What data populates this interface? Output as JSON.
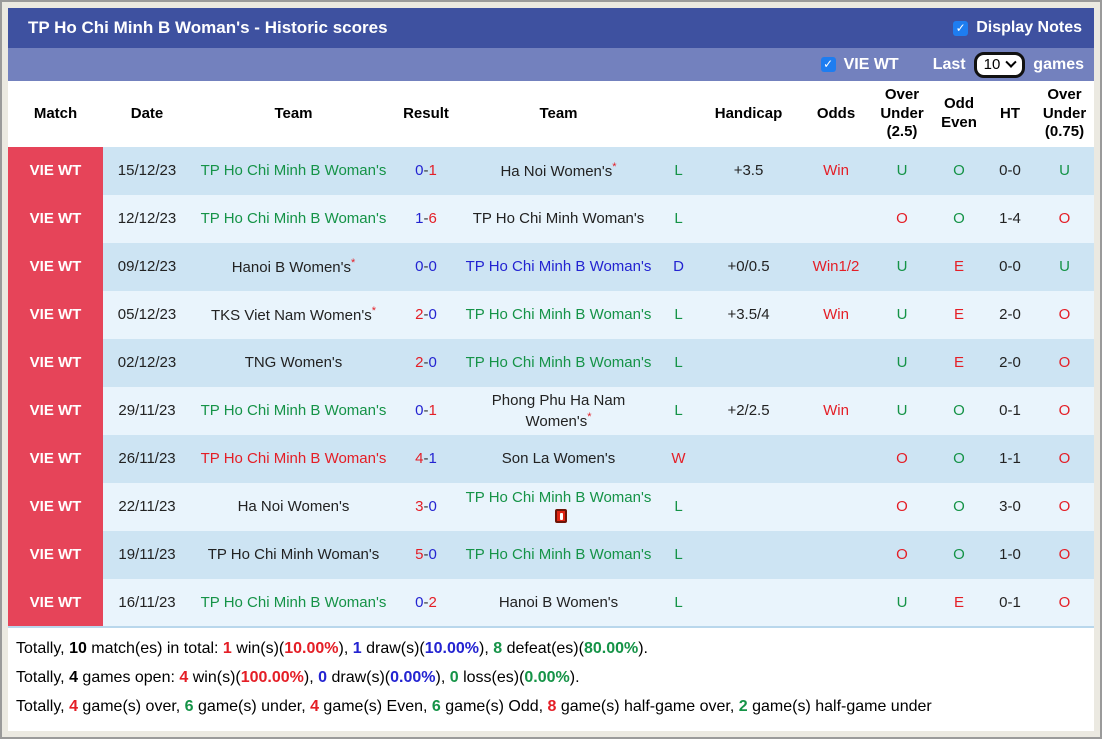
{
  "header": {
    "title": "TP Ho Chi Minh B Woman's - Historic scores",
    "display_notes_label": "Display Notes",
    "display_notes_checked": true
  },
  "filter_bar": {
    "league_label": "VIE WT",
    "league_checked": true,
    "last_label": "Last",
    "games_label": "games",
    "selected_games": "10"
  },
  "icons": {
    "check": "✓",
    "star": "*"
  },
  "colors": {
    "green": "#159347",
    "blue": "#2323d1",
    "red": "#e41e26",
    "black": "#222222",
    "header_bar": "#3e51a0",
    "filter_bar": "#7381be",
    "match_cell": "#e64459",
    "row_dark": "#cde4f3",
    "row_light": "#e9f4fc",
    "checkbox": "#1e7df0",
    "page_bg": "#ebe9e1"
  },
  "table": {
    "result_separator": "-",
    "columns": [
      "Match",
      "Date",
      "Team",
      "Result",
      "Team",
      "",
      "Handicap",
      "Odds",
      "Over Under (2.5)",
      "Odd Even",
      "HT",
      "Over Under (0.75)"
    ],
    "rows": [
      {
        "match": "VIE WT",
        "date": "15/12/23",
        "t1": {
          "n": "TP Ho Chi Minh B Woman's",
          "c": "green"
        },
        "res": {
          "h": "0",
          "hc": "blue",
          "a": "1",
          "ac": "red"
        },
        "t2": {
          "n": "Ha Noi Women's",
          "c": "black",
          "star": true
        },
        "out": {
          "t": "L",
          "c": "green"
        },
        "hcp": "+3.5",
        "odds": {
          "t": "Win",
          "c": "red"
        },
        "ou25": {
          "t": "U",
          "c": "green"
        },
        "oe": {
          "t": "O",
          "c": "green"
        },
        "ht": "0-0",
        "ou075": {
          "t": "U",
          "c": "green"
        }
      },
      {
        "match": "VIE WT",
        "date": "12/12/23",
        "t1": {
          "n": "TP Ho Chi Minh B Woman's",
          "c": "green"
        },
        "res": {
          "h": "1",
          "hc": "blue",
          "a": "6",
          "ac": "red"
        },
        "t2": {
          "n": "TP Ho Chi Minh Woman's",
          "c": "black"
        },
        "out": {
          "t": "L",
          "c": "green"
        },
        "hcp": "",
        "odds": {
          "t": "",
          "c": "red"
        },
        "ou25": {
          "t": "O",
          "c": "red"
        },
        "oe": {
          "t": "O",
          "c": "green"
        },
        "ht": "1-4",
        "ou075": {
          "t": "O",
          "c": "red"
        }
      },
      {
        "match": "VIE WT",
        "date": "09/12/23",
        "t1": {
          "n": "Hanoi B Women's",
          "c": "black",
          "star": true
        },
        "res": {
          "h": "0",
          "hc": "blue",
          "a": "0",
          "ac": "blue"
        },
        "t2": {
          "n": "TP Ho Chi Minh B Woman's",
          "c": "blue"
        },
        "out": {
          "t": "D",
          "c": "blue"
        },
        "hcp": "+0/0.5",
        "odds": {
          "t": "Win1/2",
          "c": "red"
        },
        "ou25": {
          "t": "U",
          "c": "green"
        },
        "oe": {
          "t": "E",
          "c": "red"
        },
        "ht": "0-0",
        "ou075": {
          "t": "U",
          "c": "green"
        }
      },
      {
        "match": "VIE WT",
        "date": "05/12/23",
        "t1": {
          "n": "TKS Viet Nam Women's",
          "c": "black",
          "star": true
        },
        "res": {
          "h": "2",
          "hc": "red",
          "a": "0",
          "ac": "blue"
        },
        "t2": {
          "n": "TP Ho Chi Minh B Woman's",
          "c": "green"
        },
        "out": {
          "t": "L",
          "c": "green"
        },
        "hcp": "+3.5/4",
        "odds": {
          "t": "Win",
          "c": "red"
        },
        "ou25": {
          "t": "U",
          "c": "green"
        },
        "oe": {
          "t": "E",
          "c": "red"
        },
        "ht": "2-0",
        "ou075": {
          "t": "O",
          "c": "red"
        }
      },
      {
        "match": "VIE WT",
        "date": "02/12/23",
        "t1": {
          "n": "TNG Women's",
          "c": "black"
        },
        "res": {
          "h": "2",
          "hc": "red",
          "a": "0",
          "ac": "blue"
        },
        "t2": {
          "n": "TP Ho Chi Minh B Woman's",
          "c": "green"
        },
        "out": {
          "t": "L",
          "c": "green"
        },
        "hcp": "",
        "odds": {
          "t": "",
          "c": "red"
        },
        "ou25": {
          "t": "U",
          "c": "green"
        },
        "oe": {
          "t": "E",
          "c": "red"
        },
        "ht": "2-0",
        "ou075": {
          "t": "O",
          "c": "red"
        }
      },
      {
        "match": "VIE WT",
        "date": "29/11/23",
        "t1": {
          "n": "TP Ho Chi Minh B Woman's",
          "c": "green"
        },
        "res": {
          "h": "0",
          "hc": "blue",
          "a": "1",
          "ac": "red"
        },
        "t2": {
          "n": "Phong Phu Ha Nam Women's",
          "c": "black",
          "star": true
        },
        "out": {
          "t": "L",
          "c": "green"
        },
        "hcp": "+2/2.5",
        "odds": {
          "t": "Win",
          "c": "red"
        },
        "ou25": {
          "t": "U",
          "c": "green"
        },
        "oe": {
          "t": "O",
          "c": "green"
        },
        "ht": "0-1",
        "ou075": {
          "t": "O",
          "c": "red"
        }
      },
      {
        "match": "VIE WT",
        "date": "26/11/23",
        "t1": {
          "n": "TP Ho Chi Minh B Woman's",
          "c": "red"
        },
        "res": {
          "h": "4",
          "hc": "red",
          "a": "1",
          "ac": "blue"
        },
        "t2": {
          "n": "Son La Women's",
          "c": "black"
        },
        "out": {
          "t": "W",
          "c": "red"
        },
        "hcp": "",
        "odds": {
          "t": "",
          "c": "red"
        },
        "ou25": {
          "t": "O",
          "c": "red"
        },
        "oe": {
          "t": "O",
          "c": "green"
        },
        "ht": "1-1",
        "ou075": {
          "t": "O",
          "c": "red"
        }
      },
      {
        "match": "VIE WT",
        "date": "22/11/23",
        "t1": {
          "n": "Ha Noi Women's",
          "c": "black"
        },
        "res": {
          "h": "3",
          "hc": "red",
          "a": "0",
          "ac": "blue"
        },
        "t2": {
          "n": "TP Ho Chi Minh B Woman's",
          "c": "green",
          "icon": "red-card"
        },
        "out": {
          "t": "L",
          "c": "green"
        },
        "hcp": "",
        "odds": {
          "t": "",
          "c": "red"
        },
        "ou25": {
          "t": "O",
          "c": "red"
        },
        "oe": {
          "t": "O",
          "c": "green"
        },
        "ht": "3-0",
        "ou075": {
          "t": "O",
          "c": "red"
        }
      },
      {
        "match": "VIE WT",
        "date": "19/11/23",
        "t1": {
          "n": "TP Ho Chi Minh Woman's",
          "c": "black"
        },
        "res": {
          "h": "5",
          "hc": "red",
          "a": "0",
          "ac": "blue"
        },
        "t2": {
          "n": "TP Ho Chi Minh B Woman's",
          "c": "green"
        },
        "out": {
          "t": "L",
          "c": "green"
        },
        "hcp": "",
        "odds": {
          "t": "",
          "c": "red"
        },
        "ou25": {
          "t": "O",
          "c": "red"
        },
        "oe": {
          "t": "O",
          "c": "green"
        },
        "ht": "1-0",
        "ou075": {
          "t": "O",
          "c": "red"
        }
      },
      {
        "match": "VIE WT",
        "date": "16/11/23",
        "t1": {
          "n": "TP Ho Chi Minh B Woman's",
          "c": "green"
        },
        "res": {
          "h": "0",
          "hc": "blue",
          "a": "2",
          "ac": "red"
        },
        "t2": {
          "n": "Hanoi B Women's",
          "c": "black"
        },
        "out": {
          "t": "L",
          "c": "green"
        },
        "hcp": "",
        "odds": {
          "t": "",
          "c": "red"
        },
        "ou25": {
          "t": "U",
          "c": "green"
        },
        "oe": {
          "t": "E",
          "c": "red"
        },
        "ht": "0-1",
        "ou075": {
          "t": "O",
          "c": "red"
        }
      }
    ]
  },
  "footer": {
    "lines": [
      [
        {
          "t": "Totally, "
        },
        {
          "t": "10",
          "b": 1
        },
        {
          "t": " match(es) in total: "
        },
        {
          "t": "1",
          "c": "red",
          "b": 1
        },
        {
          "t": " win(s)("
        },
        {
          "t": "10.00%",
          "c": "red",
          "b": 1
        },
        {
          "t": "), "
        },
        {
          "t": "1",
          "c": "blue",
          "b": 1
        },
        {
          "t": " draw(s)("
        },
        {
          "t": "10.00%",
          "c": "blue",
          "b": 1
        },
        {
          "t": "), "
        },
        {
          "t": "8",
          "c": "green",
          "b": 1
        },
        {
          "t": " defeat(es)("
        },
        {
          "t": "80.00%",
          "c": "green",
          "b": 1
        },
        {
          "t": ")."
        }
      ],
      [
        {
          "t": "Totally, "
        },
        {
          "t": "4",
          "b": 1
        },
        {
          "t": " games open: "
        },
        {
          "t": "4",
          "c": "red",
          "b": 1
        },
        {
          "t": " win(s)("
        },
        {
          "t": "100.00%",
          "c": "red",
          "b": 1
        },
        {
          "t": "), "
        },
        {
          "t": "0",
          "c": "blue",
          "b": 1
        },
        {
          "t": " draw(s)("
        },
        {
          "t": "0.00%",
          "c": "blue",
          "b": 1
        },
        {
          "t": "), "
        },
        {
          "t": "0",
          "c": "green",
          "b": 1
        },
        {
          "t": " loss(es)("
        },
        {
          "t": "0.00%",
          "c": "green",
          "b": 1
        },
        {
          "t": ")."
        }
      ],
      [
        {
          "t": "Totally, "
        },
        {
          "t": "4",
          "c": "red",
          "b": 1
        },
        {
          "t": " game(s) over, "
        },
        {
          "t": "6",
          "c": "green",
          "b": 1
        },
        {
          "t": " game(s) under, "
        },
        {
          "t": "4",
          "c": "red",
          "b": 1
        },
        {
          "t": " game(s) Even, "
        },
        {
          "t": "6",
          "c": "green",
          "b": 1
        },
        {
          "t": " game(s) Odd, "
        },
        {
          "t": "8",
          "c": "red",
          "b": 1
        },
        {
          "t": " game(s) half-game over, "
        },
        {
          "t": "2",
          "c": "green",
          "b": 1
        },
        {
          "t": " game(s) half-game under"
        }
      ]
    ]
  }
}
